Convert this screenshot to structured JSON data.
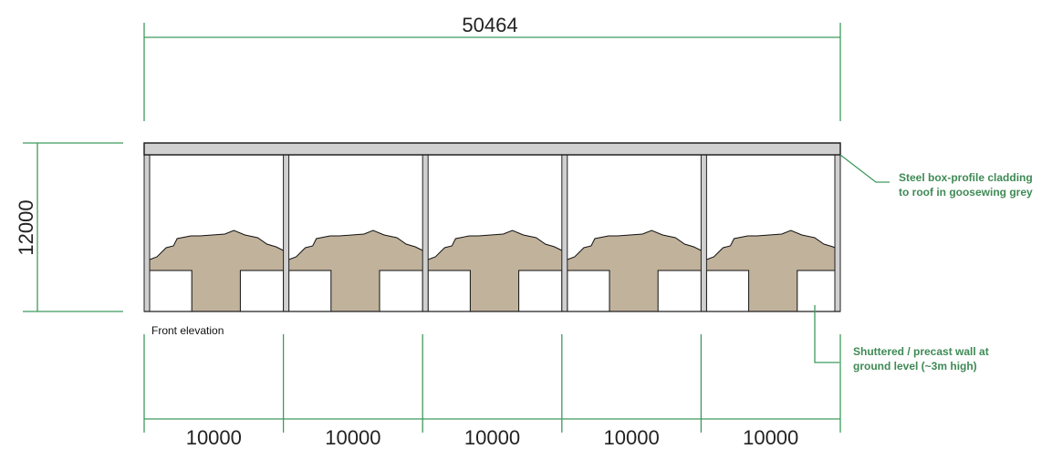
{
  "overall_width": "50464",
  "height": "12000",
  "bays": [
    "10000",
    "10000",
    "10000",
    "10000",
    "10000"
  ],
  "caption": "Front elevation",
  "annotations": [
    {
      "lines": [
        "Steel box-profile cladding",
        "to roof in goosewing grey"
      ]
    },
    {
      "lines": [
        "Shuttered / precast wall at",
        "ground level (~3m high)"
      ]
    }
  ]
}
